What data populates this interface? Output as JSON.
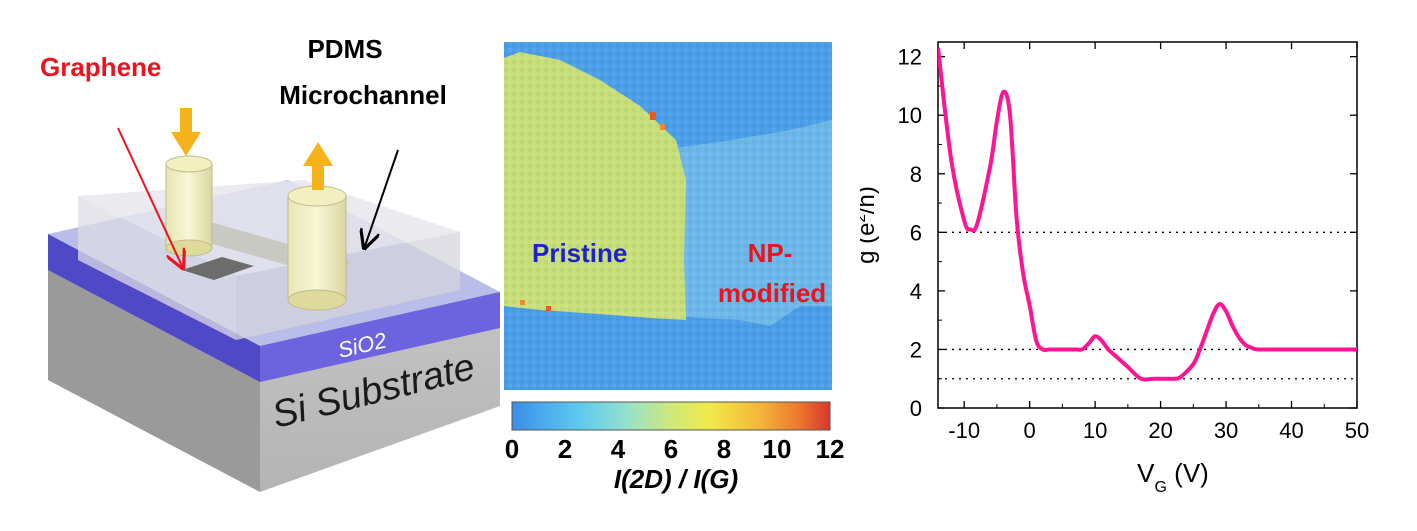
{
  "device": {
    "graphene_label": "Graphene",
    "pdms_label_line1": "PDMS",
    "pdms_label_line2": "Microchannel",
    "sio2_label": "SiO2",
    "substrate_label": "Si Substrate"
  },
  "raman_map": {
    "pristine_label": "Pristine",
    "np_label_line1": "NP-",
    "np_label_line2": "modified",
    "colorbar_ticks": [
      "0",
      "2",
      "4",
      "6",
      "8",
      "10",
      "12"
    ],
    "colorbar_title": "I(2D) / I(G)",
    "colors": {
      "background": "#4a9ee8",
      "pristine": "#c9e07a",
      "modified": "#6cb8ea"
    }
  },
  "chart_data": {
    "type": "line",
    "x": [
      -14,
      -12,
      -10,
      -9,
      -8,
      -6,
      -5,
      -4,
      -3,
      -2,
      -1,
      0,
      1,
      2,
      3,
      5,
      7,
      8,
      9,
      10,
      11,
      12,
      13,
      15,
      17,
      19,
      21,
      22,
      23,
      25,
      26,
      27,
      28,
      29,
      30,
      31,
      32,
      33,
      34,
      35,
      40,
      45,
      50
    ],
    "y": [
      12.3,
      8.5,
      6.4,
      6.1,
      6.3,
      8.3,
      9.8,
      10.8,
      10.0,
      6.5,
      4.6,
      3.5,
      2.3,
      2.0,
      2.0,
      2.0,
      2.0,
      2.0,
      2.2,
      2.45,
      2.3,
      2.0,
      1.8,
      1.4,
      1.0,
      1.0,
      1.0,
      1.0,
      1.05,
      1.5,
      2.0,
      2.6,
      3.2,
      3.55,
      3.3,
      2.8,
      2.4,
      2.15,
      2.05,
      2.0,
      2.0,
      2.0,
      2.0
    ],
    "xlabel_main": "V",
    "xlabel_sub": "G",
    "xlabel_unit": " (V)",
    "ylabel_main": "g (e",
    "ylabel_sup": "2",
    "ylabel_unit": "/h)",
    "xlim": [
      -14,
      50
    ],
    "ylim": [
      0,
      12.5
    ],
    "xticks": [
      -10,
      0,
      10,
      20,
      30,
      40,
      50
    ],
    "yticks": [
      0,
      2,
      4,
      6,
      8,
      10,
      12
    ],
    "reference_lines": [
      1,
      2,
      6
    ],
    "line_color": "#ff1493",
    "grid": false
  }
}
